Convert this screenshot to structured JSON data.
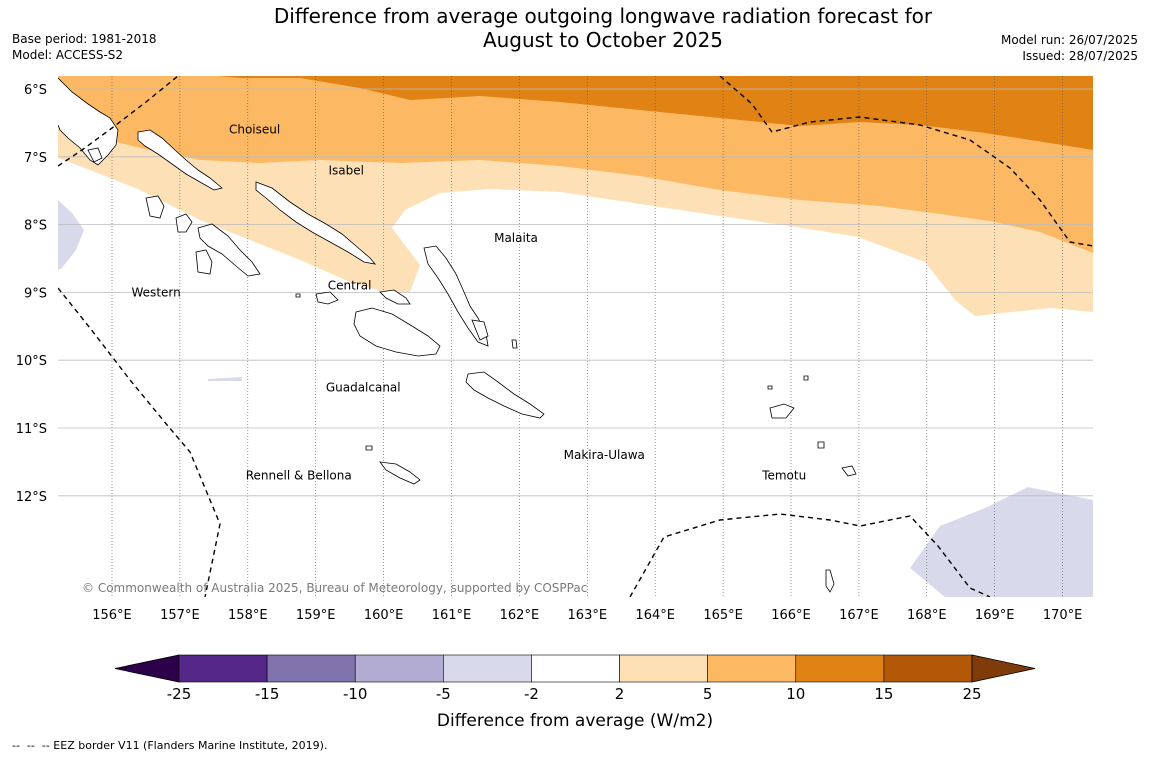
{
  "header": {
    "title_line1": "Difference from average outgoing longwave radiation forecast for",
    "title_line2": "August to October 2025",
    "base_period": "Base period: 1981-2018",
    "model": "Model: ACCESS-S2",
    "model_run": "Model run: 26/07/2025",
    "issued": "Issued: 28/07/2025"
  },
  "map": {
    "copyright": "© Commonwealth of Australia 2025, Bureau of Meteorology, supported by COSPPac",
    "lon_ticks": [
      {
        "lon": 156,
        "label": "156°E"
      },
      {
        "lon": 157,
        "label": "157°E"
      },
      {
        "lon": 158,
        "label": "158°E"
      },
      {
        "lon": 159,
        "label": "159°E"
      },
      {
        "lon": 160,
        "label": "160°E"
      },
      {
        "lon": 161,
        "label": "161°E"
      },
      {
        "lon": 162,
        "label": "162°E"
      },
      {
        "lon": 163,
        "label": "163°E"
      },
      {
        "lon": 164,
        "label": "164°E"
      },
      {
        "lon": 165,
        "label": "165°E"
      },
      {
        "lon": 166,
        "label": "166°E"
      },
      {
        "lon": 167,
        "label": "167°E"
      },
      {
        "lon": 168,
        "label": "168°E"
      },
      {
        "lon": 169,
        "label": "169°E"
      },
      {
        "lon": 170,
        "label": "170°E"
      }
    ],
    "lat_ticks": [
      {
        "lat": -6,
        "label": "6°S"
      },
      {
        "lat": -7,
        "label": "7°S"
      },
      {
        "lat": -8,
        "label": "8°S"
      },
      {
        "lat": -9,
        "label": "9°S"
      },
      {
        "lat": -10,
        "label": "10°S"
      },
      {
        "lat": -11,
        "label": "11°S"
      },
      {
        "lat": -12,
        "label": "12°S"
      }
    ],
    "provinces": [
      {
        "name": "Choiseul",
        "lon": 158.1,
        "lat": -6.6
      },
      {
        "name": "Isabel",
        "lon": 159.45,
        "lat": -7.2
      },
      {
        "name": "Malaita",
        "lon": 161.95,
        "lat": -8.2
      },
      {
        "name": "Western",
        "lon": 156.65,
        "lat": -9.0
      },
      {
        "name": "Central",
        "lon": 159.5,
        "lat": -8.9
      },
      {
        "name": "Guadalcanal",
        "lon": 159.7,
        "lat": -10.4
      },
      {
        "name": "Makira-Ulawa",
        "lon": 163.25,
        "lat": -11.4
      },
      {
        "name": "Rennell & Bellona",
        "lon": 158.75,
        "lat": -11.7
      },
      {
        "name": "Temotu",
        "lon": 165.9,
        "lat": -11.7
      }
    ],
    "colors": {
      "c2_5": "#fee0b6",
      "c5_10": "#fdb863",
      "c10_15": "#e08214",
      "cneg": "#d8daeb",
      "land": "#ffffff",
      "eez": "#000000"
    }
  },
  "colorbar": {
    "label": "Difference from average (W/m2)",
    "ticks": [
      "-25",
      "-15",
      "-10",
      "-5",
      "-2",
      "2",
      "5",
      "10",
      "15",
      "25"
    ],
    "low_extend_color": "#2d004b",
    "high_extend_color": "#7f3b08",
    "colors": [
      "#542788",
      "#8073ac",
      "#b2abd2",
      "#d8daeb",
      "#ffffff",
      "#fee0b6",
      "#fdb863",
      "#e08214",
      "#b35806"
    ]
  },
  "footnote": "--  --  -- EEZ border V11 (Flanders Marine Institute, 2019)."
}
